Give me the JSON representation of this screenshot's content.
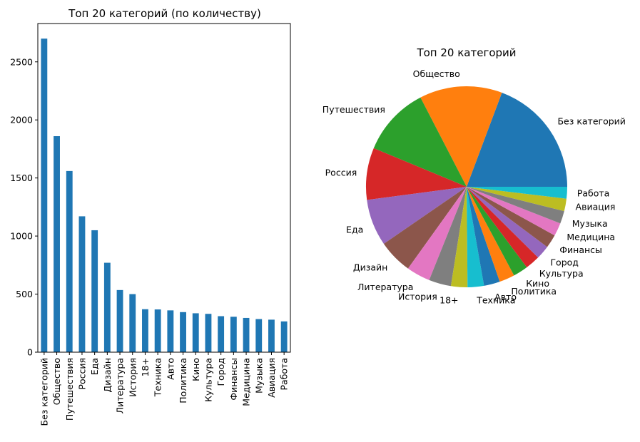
{
  "chart_data": [
    {
      "type": "bar",
      "title": "Топ 20 категорий (по количеству)",
      "xlabel": "",
      "ylabel": "",
      "ylim": [
        0,
        2830
      ],
      "yticks": [
        0,
        500,
        1000,
        1500,
        2000,
        2500
      ],
      "grid": false,
      "color": "#1f77b4",
      "categories": [
        "Без категорий",
        "Общество",
        "Путешествия",
        "Россия",
        "Еда",
        "Дизайн",
        "Литература",
        "История",
        "18+",
        "Техника",
        "Авто",
        "Политика",
        "Кино",
        "Культура",
        "Город",
        "Финансы",
        "Медицина",
        "Музыка",
        "Авиация",
        "Работа"
      ],
      "values": [
        2700,
        1860,
        1560,
        1170,
        1050,
        770,
        535,
        500,
        370,
        368,
        360,
        345,
        335,
        330,
        310,
        305,
        295,
        285,
        280,
        265
      ]
    },
    {
      "type": "pie",
      "title": "Топ 20 категорий",
      "start_angle": 0,
      "direction": "counterclockwise",
      "labels": [
        "Без категорий",
        "Общество",
        "Путешествия",
        "Россия",
        "Еда",
        "Дизайн",
        "Литература",
        "История",
        "18+",
        "Техника",
        "Авто",
        "Политика",
        "Кино",
        "Культура",
        "Город",
        "Финансы",
        "Медицина",
        "Музыка",
        "Авиация",
        "Работа"
      ],
      "values": [
        2700,
        1860,
        1560,
        1170,
        1050,
        770,
        535,
        500,
        370,
        368,
        360,
        345,
        335,
        330,
        310,
        305,
        295,
        285,
        280,
        265
      ],
      "colors": [
        "#1f77b4",
        "#ff7f0e",
        "#2ca02c",
        "#d62728",
        "#9467bd",
        "#8c564b",
        "#e377c2",
        "#7f7f7f",
        "#bcbd22",
        "#17becf",
        "#1f77b4",
        "#ff7f0e",
        "#2ca02c",
        "#d62728",
        "#9467bd",
        "#8c564b",
        "#e377c2",
        "#7f7f7f",
        "#bcbd22",
        "#17becf"
      ]
    }
  ]
}
